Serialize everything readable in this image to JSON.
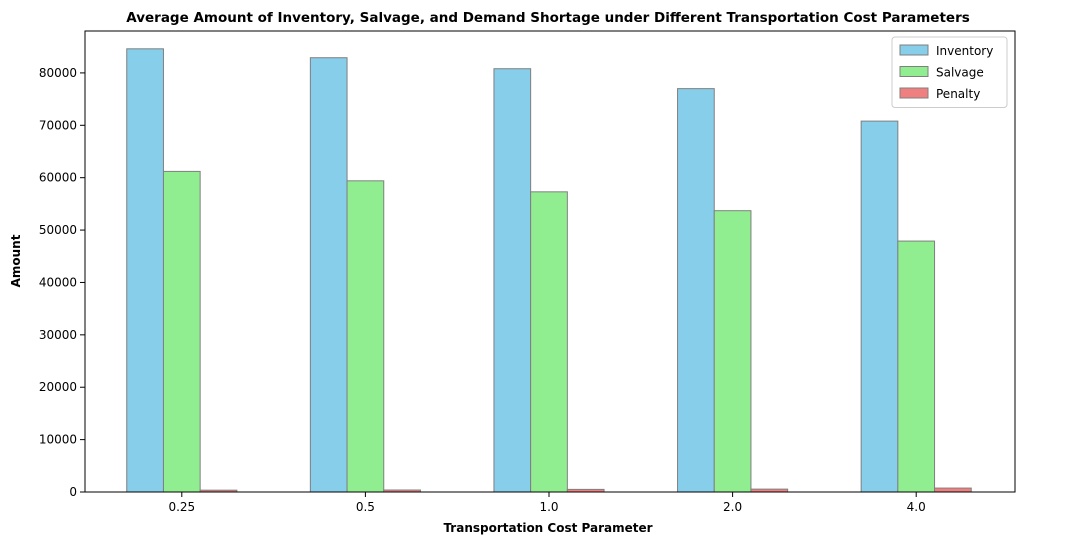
{
  "chart_data": {
    "type": "bar",
    "title": "Average Amount of Inventory, Salvage, and Demand Shortage under Different Transportation Cost Parameters",
    "xlabel": "Transportation Cost Parameter",
    "ylabel": "Amount",
    "categories": [
      "0.25",
      "0.5",
      "1.0",
      "2.0",
      "4.0"
    ],
    "series": [
      {
        "name": "Inventory",
        "color": "#87CEEB",
        "values": [
          84600,
          82900,
          80800,
          77000,
          70800
        ]
      },
      {
        "name": "Salvage",
        "color": "#90EE90",
        "values": [
          61200,
          59400,
          57300,
          53700,
          47900
        ]
      },
      {
        "name": "Penalty",
        "color": "#F08080",
        "values": [
          350,
          380,
          500,
          550,
          750
        ]
      }
    ],
    "ylim": [
      0,
      88000
    ],
    "yticks": [
      0,
      10000,
      20000,
      30000,
      40000,
      50000,
      60000,
      70000,
      80000
    ],
    "grid": false,
    "legend_position": "top-right",
    "edge_color": "#7f7f7f"
  }
}
